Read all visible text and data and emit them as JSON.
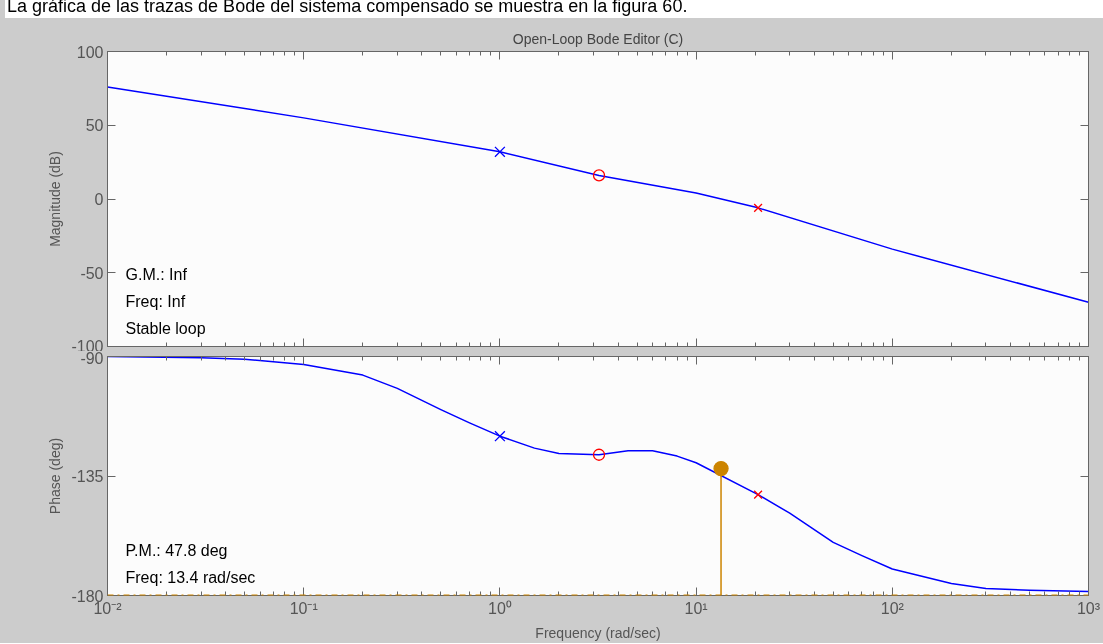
{
  "chart_data": [
    {
      "type": "other",
      "title": "La gráfica de las trazas de Bode del sistema compensado se muestra en la figura 60."
    },
    {
      "type": "line",
      "title": "Open-Loop Bode Editor (C)",
      "ylabel": "Magnitude (dB)",
      "log": "x",
      "grid": false,
      "tick_labels": "y",
      "xlim": [
        0.01,
        1000
      ],
      "xticks": [
        {
          "value": 0.01,
          "label": null
        },
        {
          "value": 0.1,
          "label": null
        },
        {
          "value": 1,
          "label": null
        },
        {
          "value": 10,
          "label": null
        },
        {
          "value": 100,
          "label": null
        },
        {
          "value": 1000,
          "label": null
        }
      ],
      "ylim": [
        -100,
        100
      ],
      "yticks": [
        -100,
        -50,
        0,
        50,
        100
      ],
      "series": [
        {
          "type": "line",
          "color": "#0000ff",
          "x": [
            0.01,
            0.1,
            1,
            3.2,
            10,
            20.7,
            100,
            1000
          ],
          "values": [
            76,
            55,
            32,
            16,
            4,
            -6,
            -34,
            -70
          ]
        },
        {
          "type": "scatter",
          "marker": "cross",
          "color": "#0000ff",
          "x": [
            1
          ],
          "values": [
            32
          ]
        },
        {
          "type": "scatter",
          "marker": "circle",
          "color": "#ff0000",
          "x": [
            3.2
          ],
          "values": [
            16
          ]
        },
        {
          "type": "scatter",
          "marker": "cross",
          "color": "#ff0000",
          "x": [
            20.7
          ],
          "values": [
            -6
          ]
        }
      ],
      "annotations": [
        "G.M.: Inf",
        "Freq: Inf",
        "Stable loop"
      ]
    },
    {
      "type": "line",
      "xlabel": "Frequency (rad/sec)",
      "ylabel": "Phase (deg)",
      "log": "x",
      "grid": false,
      "xlim": [
        0.01,
        1000
      ],
      "xticks": [
        {
          "value": 0.01,
          "label": "10⁻²"
        },
        {
          "value": 0.1,
          "label": "10⁻¹"
        },
        {
          "value": 1,
          "label": "10⁰"
        },
        {
          "value": 10,
          "label": "10¹"
        },
        {
          "value": 100,
          "label": "10²"
        },
        {
          "value": 1000,
          "label": "10³"
        }
      ],
      "ylim": [
        -180,
        -90
      ],
      "yticks": [
        -180,
        -135,
        -90
      ],
      "series": [
        {
          "type": "line",
          "color": "#0000ff",
          "x": [
            0.01,
            0.03,
            0.05,
            0.1,
            0.2,
            0.3,
            0.5,
            0.7,
            1,
            1.5,
            2,
            3.2,
            4.5,
            6,
            8,
            10,
            20.7,
            30,
            50,
            70,
            100,
            200,
            300,
            500,
            1000
          ],
          "values": [
            -90,
            -90.5,
            -91,
            -93,
            -97,
            -102,
            -110,
            -115,
            -120,
            -124.5,
            -126.5,
            -127,
            -125.5,
            -125.5,
            -127.5,
            -130,
            -142,
            -149,
            -160,
            -165,
            -170,
            -175.5,
            -177.4,
            -178,
            -178.5
          ]
        },
        {
          "type": "scatter",
          "marker": "cross",
          "color": "#0000ff",
          "x": [
            1
          ],
          "values": [
            -120
          ]
        },
        {
          "type": "scatter",
          "marker": "circle",
          "color": "#ff0000",
          "x": [
            3.2
          ],
          "values": [
            -127
          ]
        },
        {
          "type": "scatter",
          "marker": "cross",
          "color": "#ff0000",
          "x": [
            20.7
          ],
          "values": [
            -142
          ]
        },
        {
          "type": "line",
          "color": "#cc8400",
          "x": [
            13.4,
            13.4
          ],
          "values": [
            -180,
            -132.2
          ]
        },
        {
          "type": "scatter",
          "marker": "circle",
          "color": "#cc8400",
          "x": [
            13.4
          ],
          "values": [
            -132.2
          ]
        }
      ],
      "ref_lines": [
        {
          "axis": "y",
          "value": -180,
          "color": "#cc8400",
          "line_style": "dashdot"
        }
      ],
      "annotations": [
        "P.M.: 47.8 deg",
        "Freq: 13.4 rad/sec"
      ]
    }
  ]
}
